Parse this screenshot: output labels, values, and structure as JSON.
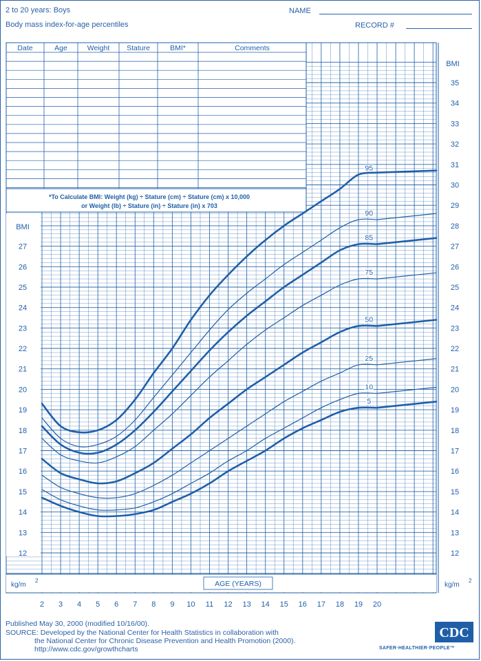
{
  "header": {
    "title": "2 to 20 years: Boys",
    "subtitle": "Body mass index-for-age percentiles",
    "name_label": "NAME",
    "record_label": "RECORD #"
  },
  "record_table": {
    "columns": [
      "Date",
      "Age",
      "Weight",
      "Stature",
      "BMI*",
      "Comments"
    ],
    "formula_line1": "*To Calculate BMI: Weight (kg) ÷ Stature (cm) ÷ Stature (cm) x 10,000",
    "formula_line2": "or Weight (lb) ÷ Stature (in) ÷ Stature (in) x 703"
  },
  "chart_data": {
    "type": "line",
    "title": "Body mass index-for-age percentiles",
    "xlabel": "AGE (YEARS)",
    "ylabel": "BMI",
    "unit_label": "kg/m",
    "unit_superscript": "2",
    "xlim": [
      2,
      20
    ],
    "ylim": [
      12,
      35
    ],
    "x_ticks": [
      2,
      3,
      4,
      5,
      6,
      7,
      8,
      9,
      10,
      11,
      12,
      13,
      14,
      15,
      16,
      17,
      18,
      19,
      20
    ],
    "y_ticks_left": [
      12,
      13,
      14,
      15,
      16,
      17,
      18,
      19,
      20,
      21,
      22,
      23,
      24,
      25,
      26,
      27
    ],
    "y_ticks_right": [
      12,
      13,
      14,
      15,
      16,
      17,
      18,
      19,
      20,
      21,
      22,
      23,
      24,
      25,
      26,
      27,
      28,
      29,
      30,
      31,
      32,
      33,
      34,
      35
    ],
    "grid": true,
    "x": [
      2,
      3,
      4,
      5,
      6,
      7,
      8,
      9,
      10,
      11,
      12,
      13,
      14,
      15,
      16,
      17,
      18,
      19,
      20
    ],
    "series": [
      {
        "name": "95",
        "bold": true,
        "values": [
          19.3,
          18.2,
          17.9,
          18.0,
          18.5,
          19.5,
          20.8,
          22.0,
          23.4,
          24.6,
          25.6,
          26.5,
          27.3,
          28.0,
          28.6,
          29.2,
          29.8,
          30.5,
          30.6
        ]
      },
      {
        "name": "90",
        "bold": false,
        "values": [
          18.6,
          17.6,
          17.2,
          17.3,
          17.7,
          18.5,
          19.6,
          20.7,
          21.8,
          22.9,
          23.9,
          24.7,
          25.4,
          26.1,
          26.7,
          27.3,
          27.9,
          28.3,
          28.3
        ]
      },
      {
        "name": "85",
        "bold": true,
        "values": [
          18.2,
          17.3,
          16.9,
          16.9,
          17.3,
          18.0,
          18.9,
          19.9,
          20.9,
          21.9,
          22.8,
          23.6,
          24.3,
          25.0,
          25.6,
          26.2,
          26.8,
          27.1,
          27.1
        ]
      },
      {
        "name": "75",
        "bold": false,
        "values": [
          17.6,
          16.8,
          16.5,
          16.4,
          16.7,
          17.2,
          18.0,
          18.8,
          19.7,
          20.6,
          21.4,
          22.2,
          22.9,
          23.5,
          24.1,
          24.6,
          25.1,
          25.4,
          25.4
        ]
      },
      {
        "name": "50",
        "bold": true,
        "values": [
          16.6,
          15.9,
          15.6,
          15.4,
          15.5,
          15.9,
          16.4,
          17.1,
          17.8,
          18.6,
          19.3,
          20.0,
          20.6,
          21.2,
          21.8,
          22.3,
          22.8,
          23.1,
          23.1
        ]
      },
      {
        "name": "25",
        "bold": false,
        "values": [
          15.8,
          15.2,
          14.9,
          14.7,
          14.7,
          14.9,
          15.3,
          15.8,
          16.4,
          17.0,
          17.6,
          18.2,
          18.8,
          19.4,
          19.9,
          20.4,
          20.8,
          21.2,
          21.2
        ]
      },
      {
        "name": "10",
        "bold": false,
        "values": [
          15.1,
          14.6,
          14.3,
          14.1,
          14.1,
          14.2,
          14.5,
          14.9,
          15.4,
          15.9,
          16.5,
          17.0,
          17.6,
          18.1,
          18.6,
          19.1,
          19.5,
          19.8,
          19.8
        ]
      },
      {
        "name": "5",
        "bold": true,
        "values": [
          14.7,
          14.3,
          14.0,
          13.8,
          13.8,
          13.9,
          14.1,
          14.5,
          14.9,
          15.4,
          16.0,
          16.5,
          17.0,
          17.6,
          18.1,
          18.5,
          18.9,
          19.1,
          19.1
        ]
      }
    ],
    "line_color": "#1f5fa8"
  },
  "footer": {
    "published": "Published May 30, 2000 (modified 10/16/00).",
    "source1": "SOURCE: Developed by the National Center for Health Statistics in collaboration with",
    "source2": "the National Center for Chronic Disease Prevention and Health Promotion (2000).",
    "url": "http://www.cdc.gov/growthcharts",
    "logo_text": "CDC",
    "tagline": "SAFER·HEALTHIER·PEOPLE™"
  }
}
